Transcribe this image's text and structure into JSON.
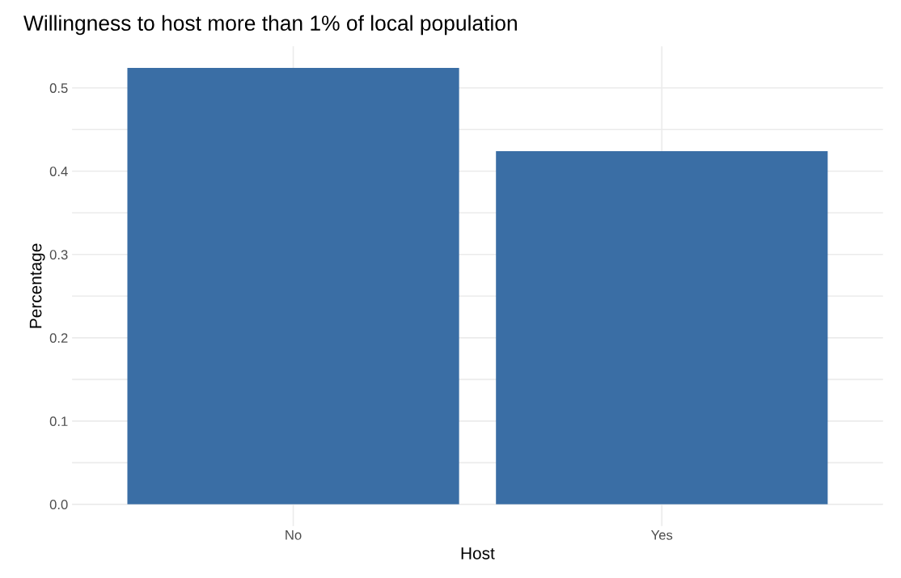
{
  "chart_data": {
    "type": "bar",
    "title": "Willingness to host more than 1% of local population",
    "xlabel": "Host",
    "ylabel": "Percentage",
    "categories": [
      "No",
      "Yes"
    ],
    "values": [
      0.524,
      0.424
    ],
    "color": "#3a6ea5",
    "ylim": [
      -0.026,
      0.55
    ],
    "yticks": [
      {
        "value": 0,
        "label": "0.0"
      },
      {
        "value": 0.05,
        "label": null
      },
      0.1,
      {
        "value": 0.15,
        "label": null
      },
      0.2,
      {
        "value": 0.25,
        "label": null
      },
      0.3,
      {
        "value": 0.35,
        "label": null
      },
      0.4,
      {
        "value": 0.45,
        "label": null
      },
      0.5
    ],
    "grid": true
  }
}
